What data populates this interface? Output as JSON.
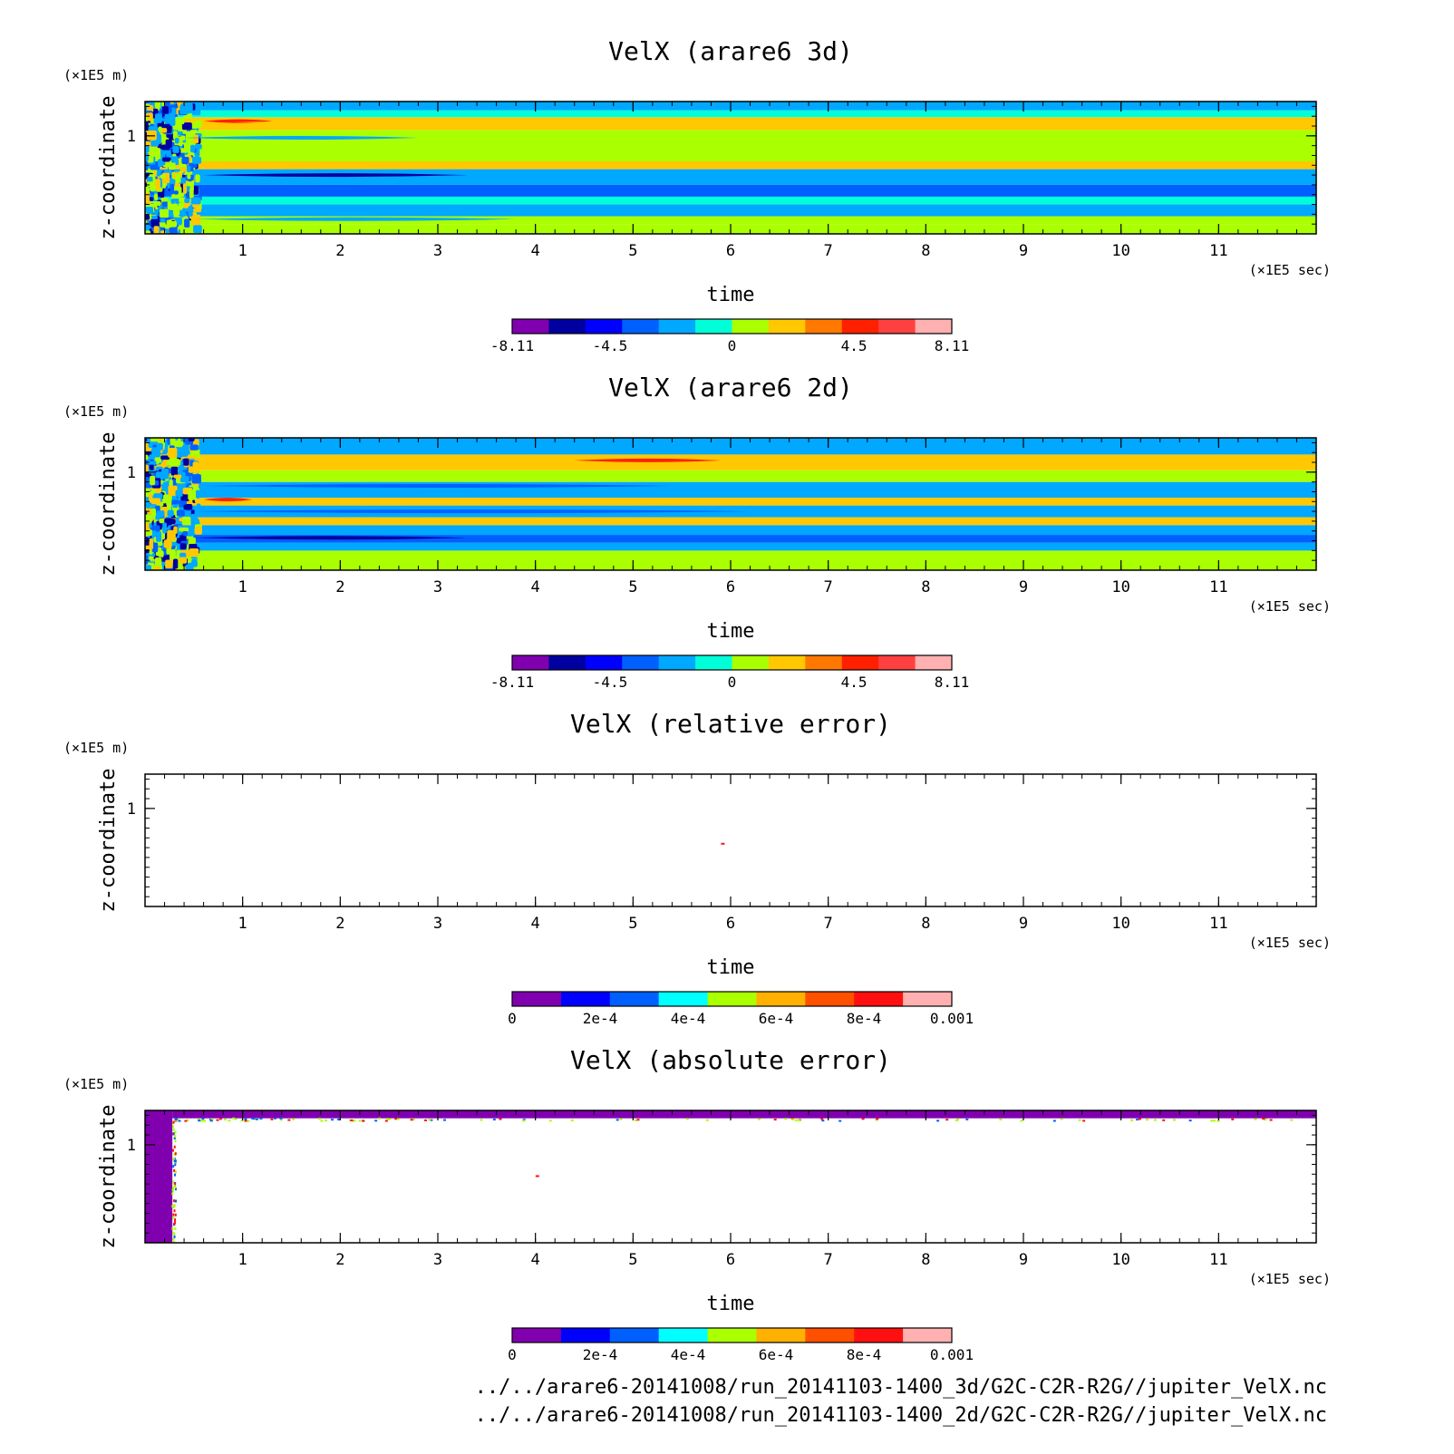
{
  "chart_data": [
    {
      "type": "heatmap",
      "title": "VelX (arare6 3d)",
      "xlabel": "time",
      "ylabel": "z-coordinate",
      "x_unit": "(×1E5 sec)",
      "y_unit": "(×1E5 m)",
      "xlim": [
        0,
        12
      ],
      "ylim": [
        0,
        1.35
      ],
      "x_ticks": [
        1,
        2,
        3,
        4,
        5,
        6,
        7,
        8,
        9,
        10,
        11
      ],
      "y_ticks": [
        1
      ],
      "colorbar": {
        "min": -8.11,
        "max": 8.11,
        "labels": [
          "-8.11",
          "-4.5",
          "0",
          "4.5",
          "8.11"
        ],
        "colors": [
          "#8000b0",
          "#0000a0",
          "#0000ff",
          "#0060ff",
          "#00a8ff",
          "#00ffd8",
          "#aaff00",
          "#ffc800",
          "#ff7800",
          "#ff2000",
          "#ff4040",
          "#ffb0b0"
        ]
      },
      "bands": [
        {
          "z0": 0.0,
          "z1": 0.1,
          "value": 0.5
        },
        {
          "z0": 0.1,
          "z1": 0.18,
          "value": 0.0
        },
        {
          "z0": 0.18,
          "z1": 0.3,
          "value": -2.0
        },
        {
          "z0": 0.3,
          "z1": 0.38,
          "value": -1.0
        },
        {
          "z0": 0.38,
          "z1": 0.5,
          "value": -3.5
        },
        {
          "z0": 0.5,
          "z1": 0.66,
          "value": -2.5
        },
        {
          "z0": 0.66,
          "z1": 0.74,
          "value": 1.5
        },
        {
          "z0": 0.74,
          "z1": 1.06,
          "value": 0.5
        },
        {
          "z0": 1.06,
          "z1": 1.19,
          "value": 1.5
        },
        {
          "z0": 1.19,
          "z1": 1.26,
          "value": -1.0
        },
        {
          "z0": 1.26,
          "z1": 1.35,
          "value": -1.5
        }
      ],
      "streaks": [
        {
          "t0": 0.6,
          "t1": 3.3,
          "z": 0.6,
          "value": -5.5
        },
        {
          "t0": 0.6,
          "t1": 1.3,
          "z": 1.15,
          "value": 4.5
        },
        {
          "t0": 0.9,
          "t1": 5.5,
          "z": 1.14,
          "value": 2.5
        },
        {
          "t0": 0.4,
          "t1": 2.8,
          "z": 0.98,
          "value": -2.0
        },
        {
          "t0": 0.5,
          "t1": 3.8,
          "z": 0.15,
          "value": -2.5
        }
      ]
    },
    {
      "type": "heatmap",
      "title": "VelX (arare6 2d)",
      "xlabel": "time",
      "ylabel": "z-coordinate",
      "x_unit": "(×1E5 sec)",
      "y_unit": "(×1E5 m)",
      "xlim": [
        0,
        12
      ],
      "ylim": [
        0,
        1.35
      ],
      "x_ticks": [
        1,
        2,
        3,
        4,
        5,
        6,
        7,
        8,
        9,
        10,
        11
      ],
      "y_ticks": [
        1
      ],
      "colorbar": {
        "min": -8.11,
        "max": 8.11,
        "labels": [
          "-8.11",
          "-4.5",
          "0",
          "4.5",
          "8.11"
        ],
        "colors": [
          "#8000b0",
          "#0000a0",
          "#0000ff",
          "#0060ff",
          "#00a8ff",
          "#00ffd8",
          "#aaff00",
          "#ffc800",
          "#ff7800",
          "#ff2000",
          "#ff4040",
          "#ffb0b0"
        ]
      },
      "bands": [
        {
          "z0": 0.0,
          "z1": 0.2,
          "value": 0.5
        },
        {
          "z0": 0.2,
          "z1": 0.28,
          "value": -2.0
        },
        {
          "z0": 0.28,
          "z1": 0.36,
          "value": -3.5
        },
        {
          "z0": 0.36,
          "z1": 0.46,
          "value": -2.0
        },
        {
          "z0": 0.46,
          "z1": 0.54,
          "value": 1.5
        },
        {
          "z0": 0.54,
          "z1": 0.66,
          "value": -2.0
        },
        {
          "z0": 0.66,
          "z1": 0.74,
          "value": 1.5
        },
        {
          "z0": 0.74,
          "z1": 0.9,
          "value": -2.0
        },
        {
          "z0": 0.9,
          "z1": 1.02,
          "value": 0.5
        },
        {
          "z0": 1.02,
          "z1": 1.18,
          "value": 2.5
        },
        {
          "z0": 1.18,
          "z1": 1.35,
          "value": -1.5
        }
      ],
      "streaks": [
        {
          "t0": 0.5,
          "t1": 3.3,
          "z": 0.33,
          "value": -5.5
        },
        {
          "t0": 0.5,
          "t1": 6.2,
          "z": 0.6,
          "value": -3.5
        },
        {
          "t0": 0.6,
          "t1": 5.4,
          "z": 0.86,
          "value": -3.5
        },
        {
          "t0": 4.4,
          "t1": 5.9,
          "z": 1.12,
          "value": 5.0
        },
        {
          "t0": 0.6,
          "t1": 1.1,
          "z": 0.72,
          "value": 4.5
        }
      ]
    },
    {
      "type": "heatmap",
      "title": "VelX (relative error)",
      "xlabel": "time",
      "ylabel": "z-coordinate",
      "x_unit": "(×1E5 sec)",
      "y_unit": "(×1E5 m)",
      "xlim": [
        0,
        12
      ],
      "ylim": [
        0,
        1.35
      ],
      "x_ticks": [
        1,
        2,
        3,
        4,
        5,
        6,
        7,
        8,
        9,
        10,
        11
      ],
      "y_ticks": [
        1
      ],
      "colorbar": {
        "min": 0,
        "max": 0.001,
        "labels": [
          "0",
          "2e-4",
          "4e-4",
          "6e-4",
          "8e-4",
          "0.001"
        ],
        "colors": [
          "#8000b0",
          "#0000ff",
          "#0060ff",
          "#00ffff",
          "#aaff00",
          "#ffb000",
          "#ff5000",
          "#ff1010",
          "#ffb0b0"
        ]
      },
      "bands": [],
      "streaks": [],
      "spots": [
        {
          "t": 5.92,
          "z": 0.64,
          "value": 0.00085
        }
      ]
    },
    {
      "type": "heatmap",
      "title": "VelX (absolute error)",
      "xlabel": "time",
      "ylabel": "z-coordinate",
      "x_unit": "(×1E5 sec)",
      "y_unit": "(×1E5 m)",
      "xlim": [
        0,
        12
      ],
      "ylim": [
        0,
        1.35
      ],
      "x_ticks": [
        1,
        2,
        3,
        4,
        5,
        6,
        7,
        8,
        9,
        10,
        11
      ],
      "y_ticks": [
        1
      ],
      "colorbar": {
        "min": 0,
        "max": 0.001,
        "labels": [
          "0",
          "2e-4",
          "4e-4",
          "6e-4",
          "8e-4",
          "0.001"
        ],
        "colors": [
          "#8000b0",
          "#0000ff",
          "#0060ff",
          "#00ffff",
          "#aaff00",
          "#ffb000",
          "#ff5000",
          "#ff1010",
          "#ffb0b0"
        ]
      },
      "bands": [],
      "streaks": [],
      "regions": [
        {
          "t0": 0.0,
          "t1": 0.28,
          "z0": 0.0,
          "z1": 1.35,
          "value": 0
        },
        {
          "t0": 0.28,
          "t1": 12.0,
          "z0": 1.27,
          "z1": 1.35,
          "value": 0
        }
      ],
      "spots": [
        {
          "t": 4.02,
          "z": 0.68,
          "value": 0.0008
        }
      ]
    }
  ],
  "footer": {
    "line1": "../../arare6-20141008/run_20141103-1400_3d/G2C-C2R-R2G//jupiter_VelX.nc",
    "line2": "../../arare6-20141008/run_20141103-1400_2d/G2C-C2R-R2G//jupiter_VelX.nc"
  }
}
